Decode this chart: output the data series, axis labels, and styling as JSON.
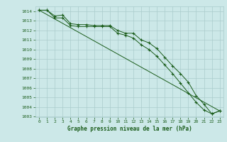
{
  "title": "Graphe pression niveau de la mer (hPa)",
  "background_color": "#cce8e8",
  "grid_color": "#aacccc",
  "line_color": "#1a5c1a",
  "x_values": [
    0,
    1,
    2,
    3,
    4,
    5,
    6,
    7,
    8,
    9,
    10,
    11,
    12,
    13,
    14,
    15,
    16,
    17,
    18,
    19,
    20,
    21,
    22,
    23
  ],
  "line1": [
    1014.1,
    1014.1,
    1013.5,
    1013.6,
    1012.7,
    1012.6,
    1012.6,
    1012.5,
    1012.5,
    1012.5,
    1012.0,
    1011.7,
    1011.7,
    1011.0,
    1010.7,
    1010.1,
    1009.2,
    1008.3,
    1007.5,
    1006.6,
    1005.2,
    1004.3,
    1003.3,
    1003.6
  ],
  "line2": [
    1014.1,
    1014.1,
    1013.3,
    1013.3,
    1012.5,
    1012.4,
    1012.4,
    1012.4,
    1012.4,
    1012.4,
    1011.7,
    1011.5,
    1011.2,
    1010.5,
    1010.0,
    1009.3,
    1008.4,
    1007.5,
    1006.5,
    1005.5,
    1004.5,
    1003.7,
    1003.3,
    1003.6
  ],
  "line3_x": [
    0,
    23
  ],
  "line3_y": [
    1014.1,
    1003.6
  ],
  "ylim_min": 1003.0,
  "ylim_max": 1014.5,
  "yticks": [
    1003,
    1004,
    1005,
    1006,
    1007,
    1008,
    1009,
    1010,
    1011,
    1012,
    1013,
    1014
  ],
  "xticks": [
    0,
    1,
    2,
    3,
    4,
    5,
    6,
    7,
    8,
    9,
    10,
    11,
    12,
    13,
    14,
    15,
    16,
    17,
    18,
    19,
    20,
    21,
    22,
    23
  ],
  "tick_fontsize": 4.5,
  "label_fontsize": 5.5
}
